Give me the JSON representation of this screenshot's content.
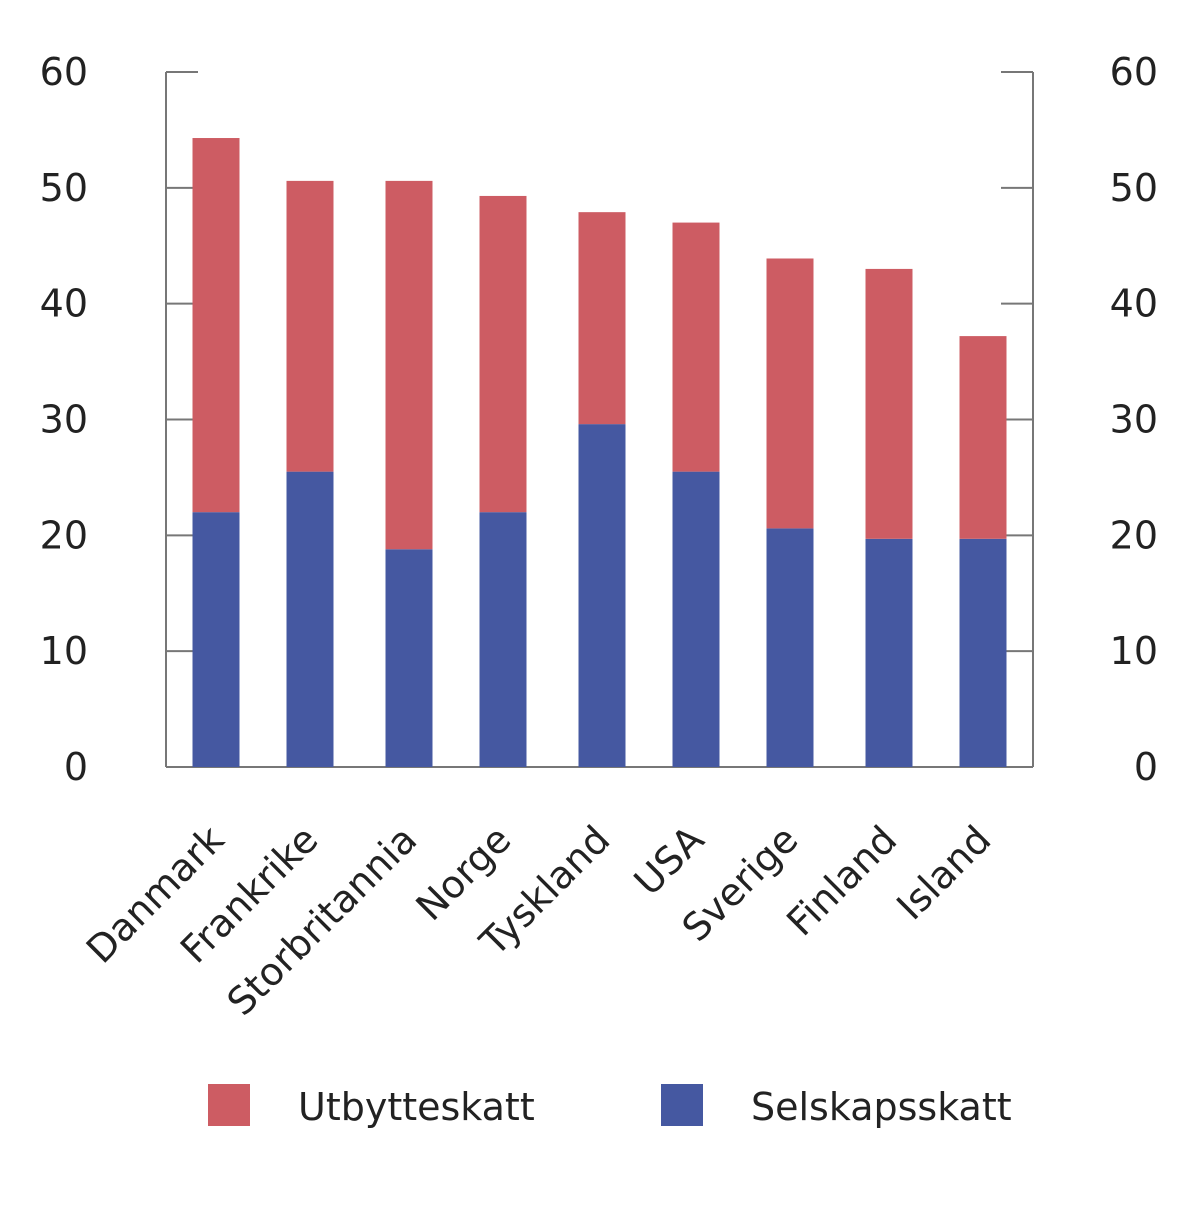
{
  "chart_data": {
    "type": "bar",
    "stacked": true,
    "categories": [
      "Danmark",
      "Frankrike",
      "Storbritannia",
      "Norge",
      "Tyskland",
      "USA",
      "Sverige",
      "Finland",
      "Island"
    ],
    "series": [
      {
        "name": "Selskapsskatt",
        "values": [
          22.0,
          25.5,
          18.8,
          22.0,
          29.6,
          25.5,
          20.6,
          19.7,
          19.7
        ],
        "color": "#4558a1"
      },
      {
        "name": "Utbytteskatt",
        "values": [
          32.3,
          25.1,
          31.8,
          27.3,
          18.3,
          21.5,
          23.3,
          23.3,
          17.5
        ],
        "color": "#cd5c63"
      }
    ],
    "title": "",
    "xlabel": "",
    "ylabel": "",
    "ylim": [
      0,
      60
    ],
    "yticks": [
      0,
      10,
      20,
      30,
      40,
      50,
      60
    ],
    "secondary_axis": {
      "ylim": [
        0,
        60
      ],
      "yticks": [
        0,
        10,
        20,
        30,
        40,
        50,
        60
      ]
    },
    "grid": false,
    "legend": {
      "placement": "bottom",
      "entries": [
        {
          "label": "Utbytteskatt",
          "color": "#cd5c63"
        },
        {
          "label": "Selskapsskatt",
          "color": "#4558a1"
        }
      ]
    }
  }
}
